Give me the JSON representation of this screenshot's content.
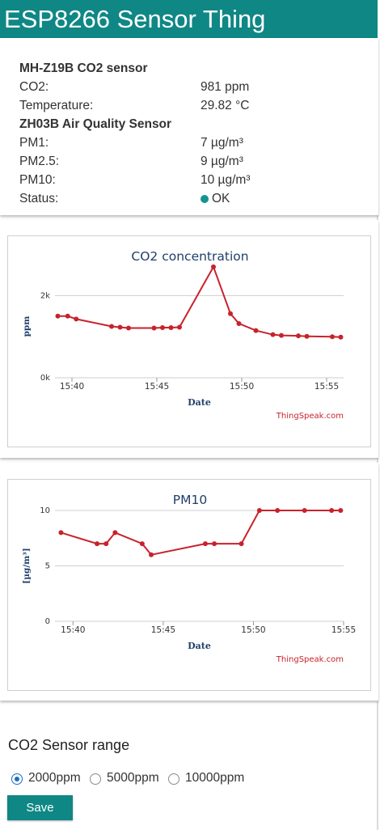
{
  "app_title": "ESP8266 Sensor Thing",
  "co2_sensor": {
    "title": "MH-Z19B CO2 sensor",
    "rows": [
      {
        "label": "CO2:",
        "value": "981 ppm"
      },
      {
        "label": "Temperature:",
        "value": "29.82 °C"
      }
    ]
  },
  "air_sensor": {
    "title": "ZH03B Air Quality Sensor",
    "rows": [
      {
        "label": "PM1:",
        "value": "7 µg/m³"
      },
      {
        "label": "PM2.5:",
        "value": "9 µg/m³"
      },
      {
        "label": "PM10:",
        "value": "10 µg/m³"
      }
    ],
    "status_label": "Status:",
    "status_value": "OK",
    "status_color": "#16948f"
  },
  "chart_data": [
    {
      "type": "line",
      "title": "CO2 concentration",
      "xlabel": "Date",
      "ylabel": "ppm",
      "credit": "ThingSpeak.com",
      "ylim": [
        0,
        2500
      ],
      "xlim": [
        "15:39",
        "15:56"
      ],
      "yticks": [
        {
          "value": 0,
          "label": "0k"
        },
        {
          "value": 2000,
          "label": "2k"
        }
      ],
      "xticks": [
        "15:40",
        "15:45",
        "15:50",
        "15:55"
      ],
      "grid": true,
      "color": "#c8222b",
      "series": [
        {
          "x": [
            "15:39:10",
            "15:39:45",
            "15:40:15",
            "15:42:20",
            "15:42:50",
            "15:43:20",
            "15:44:50",
            "15:45:20",
            "15:45:50",
            "15:46:20",
            "15:48:20",
            "15:49:20",
            "15:49:50",
            "15:50:50",
            "15:51:50",
            "15:52:20",
            "15:53:20",
            "15:53:50",
            "15:55:20",
            "15:55:50"
          ],
          "y": [
            1500,
            1500,
            1430,
            1250,
            1230,
            1210,
            1210,
            1220,
            1220,
            1230,
            2700,
            1560,
            1320,
            1150,
            1050,
            1030,
            1020,
            1010,
            1000,
            990
          ]
        }
      ]
    },
    {
      "type": "line",
      "title": "PM10",
      "xlabel": "Date",
      "ylabel": "[µg/m³]",
      "credit": "ThingSpeak.com",
      "ylim": [
        0,
        10
      ],
      "xlim": [
        "15:39",
        "15:55"
      ],
      "yticks": [
        {
          "value": 0,
          "label": "0"
        },
        {
          "value": 5,
          "label": "5"
        },
        {
          "value": 10,
          "label": "10"
        }
      ],
      "xticks": [
        "15:40",
        "15:45",
        "15:50",
        "15:55"
      ],
      "grid": true,
      "color": "#c8222b",
      "series": [
        {
          "x": [
            "15:39:20",
            "15:41:20",
            "15:41:50",
            "15:42:20",
            "15:43:50",
            "15:44:20",
            "15:47:20",
            "15:47:50",
            "15:49:20",
            "15:50:20",
            "15:51:20",
            "15:52:50",
            "15:54:20",
            "15:54:50"
          ],
          "y": [
            8,
            7,
            7,
            8,
            7,
            6,
            7,
            7,
            7,
            10,
            10,
            10,
            10,
            10
          ]
        }
      ]
    }
  ],
  "co2_range": {
    "title": "CO2 Sensor range",
    "options": [
      "2000ppm",
      "5000ppm",
      "10000ppm"
    ],
    "selected": "2000ppm"
  },
  "save_label": "Save"
}
